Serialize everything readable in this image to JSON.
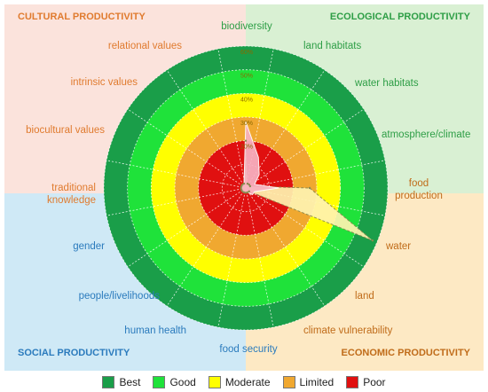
{
  "quadrants": [
    {
      "label": "CULTURAL PRODUCTIVITY",
      "fill": "#fbe3dc",
      "text_color": "#e07b2f"
    },
    {
      "label": "ECOLOGICAL PRODUCTIVITY",
      "fill": "#d9f0d3",
      "text_color": "#2e9e46"
    },
    {
      "label": "SOCIAL PRODUCTIVITY",
      "fill": "#cfe9f6",
      "text_color": "#2b7bbd"
    },
    {
      "label": "ECONOMIC PRODUCTIVITY",
      "fill": "#fde9c4",
      "text_color": "#c06c1a"
    }
  ],
  "bands": [
    {
      "label": "Best",
      "color": "#1a9e49"
    },
    {
      "label": "Good",
      "color": "#1fe23a"
    },
    {
      "label": "Moderate",
      "color": "#ffff00"
    },
    {
      "label": "Limited",
      "color": "#f0a830"
    },
    {
      "label": "Poor",
      "color": "#e01010"
    }
  ],
  "chart_data": {
    "type": "radar",
    "r_ticks": [
      "20%",
      "30%",
      "40%",
      "50%",
      "60%"
    ],
    "band_ranges": [
      [
        50,
        60
      ],
      [
        40,
        50
      ],
      [
        30,
        40
      ],
      [
        20,
        30
      ],
      [
        0,
        20
      ]
    ],
    "axes": [
      {
        "label": "biodiversity",
        "color": "#2e9e46",
        "value": 20
      },
      {
        "label": "land habitats",
        "color": "#2e9e46",
        "value": 2
      },
      {
        "label": "water habitats",
        "color": "#2e9e46",
        "value": 2
      },
      {
        "label": "atmosphere/climate",
        "color": "#2e9e46",
        "value": 2
      },
      {
        "label": "food production",
        "color": "#c06c1a",
        "value": 27
      },
      {
        "label": "water",
        "color": "#c06c1a",
        "value": 58
      },
      {
        "label": "land",
        "color": "#c06c1a",
        "value": 2
      },
      {
        "label": "climate vulnerability",
        "color": "#c06c1a",
        "value": 2
      },
      {
        "label": "food security",
        "color": "#2b7bbd",
        "value": 2
      },
      {
        "label": "human health",
        "color": "#2b7bbd",
        "value": 2
      },
      {
        "label": "people/livelihoods",
        "color": "#2b7bbd",
        "value": 2
      },
      {
        "label": "gender",
        "color": "#2b7bbd",
        "value": 2
      },
      {
        "label": "traditional knowledge",
        "color": "#e07b2f",
        "value": 2
      },
      {
        "label": "biocultural values",
        "color": "#e07b2f",
        "value": 2
      },
      {
        "label": "intrinsic values",
        "color": "#e07b2f",
        "value": 2
      },
      {
        "label": "relational values",
        "color": "#e07b2f",
        "value": 2
      }
    ],
    "series": [
      {
        "values": [
          20,
          2,
          2,
          2,
          27,
          58,
          2,
          2,
          2,
          2,
          2,
          2,
          2,
          2,
          2,
          2
        ]
      }
    ],
    "overlay_shapes": [
      {
        "fill": "#fff3b0",
        "stroke": "#8a8a50",
        "values": [
          20,
          2,
          2,
          2,
          27,
          58,
          2,
          2,
          2,
          2,
          2,
          2,
          2,
          2,
          2,
          2
        ]
      },
      {
        "fill": "#f7b2c2",
        "stroke": "#ffffff",
        "values": [
          28,
          14,
          8,
          4,
          14,
          4,
          4,
          2,
          2,
          2,
          2,
          2,
          2,
          2,
          2,
          2
        ]
      }
    ],
    "rmax": 60,
    "legend_position": "bottom"
  }
}
